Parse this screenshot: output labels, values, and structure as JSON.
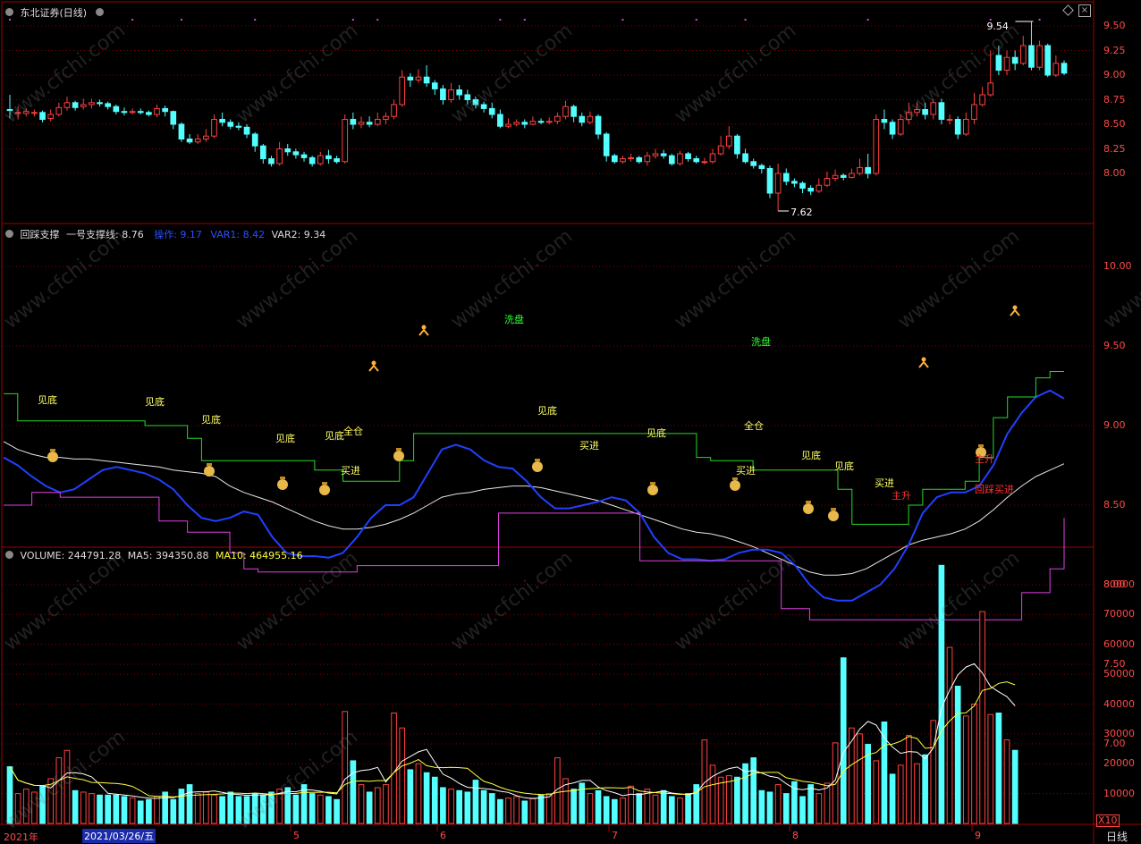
{
  "panes": {
    "price": {
      "title": "东北证券",
      "period": "(日线)",
      "high_marker": "9.54",
      "low_marker": "7.62",
      "yticks": [
        "9.50",
        "9.25",
        "9.00",
        "8.75",
        "8.50",
        "8.25",
        "8.00"
      ]
    },
    "indicator": {
      "name": "回踩支撑",
      "line1": "一号支撑线: 8.76",
      "line2": "操作: 9.17",
      "line3": "VAR1: 8.42",
      "line4": "VAR2: 9.34",
      "yticks": [
        "10.00",
        "9.50",
        "9.00",
        "8.50",
        "8.00",
        "7.50",
        "7.00"
      ]
    },
    "volume": {
      "name": "VOLUME: 244791.28",
      "ma5": "MA5: 394350.88",
      "ma10": "MA10: 464955.16",
      "yticks": [
        "80000",
        "70000",
        "60000",
        "50000",
        "40000",
        "30000",
        "20000",
        "10000"
      ],
      "unit": "X10"
    }
  },
  "xaxis": {
    "year": "2021年",
    "cursor_date": "2021/03/26/五",
    "months": [
      "5",
      "6",
      "7",
      "8",
      "9"
    ],
    "period_label": "日线"
  },
  "annotations": [
    {
      "text": "见底",
      "color": "#ffff66"
    },
    {
      "text": "见底",
      "color": "#ffff66"
    },
    {
      "text": "见底",
      "color": "#ffff66"
    },
    {
      "text": "见底",
      "color": "#ffff66"
    },
    {
      "text": "见底",
      "color": "#ffff66"
    },
    {
      "text": "全仓",
      "color": "#ffff66"
    },
    {
      "text": "买进",
      "color": "#ffff66"
    },
    {
      "text": "洗盘",
      "color": "#33ff33"
    },
    {
      "text": "见底",
      "color": "#ffff66"
    },
    {
      "text": "买进",
      "color": "#ffff66"
    },
    {
      "text": "见底",
      "color": "#ffff66"
    },
    {
      "text": "洗盘",
      "color": "#33ff33"
    },
    {
      "text": "买进",
      "color": "#ffff66"
    },
    {
      "text": "全仓",
      "color": "#ffff66"
    },
    {
      "text": "见底",
      "color": "#ffff66"
    },
    {
      "text": "见底",
      "color": "#ffff66"
    },
    {
      "text": "买进",
      "color": "#ffff66"
    },
    {
      "text": "主升",
      "color": "#ff3030"
    },
    {
      "text": "主升",
      "color": "#ff3030"
    },
    {
      "text": "回踩买进",
      "color": "#ff3030"
    }
  ],
  "watermark": "www.cfchi.com",
  "colors": {
    "up": "#ff4040",
    "down": "#54ffff",
    "grid": "#8a0000",
    "ind_blue": "#2040ff",
    "ind_white": "#e8e8e8",
    "ind_green": "#2ad82a",
    "ind_magenta": "#e040e0",
    "ma5": "#ffffff",
    "ma10": "#ffff40"
  },
  "chart_data": {
    "type": "candlestick",
    "title": "东北证券 (日线)",
    "price_range": [
      7.55,
      9.7
    ],
    "candles": [
      [
        8.65,
        8.64,
        8.8,
        8.56
      ],
      [
        8.62,
        8.62,
        8.68,
        8.55
      ],
      [
        8.61,
        8.63,
        8.66,
        8.58
      ],
      [
        8.62,
        8.62,
        8.65,
        8.58
      ],
      [
        8.62,
        8.55,
        8.64,
        8.52
      ],
      [
        8.56,
        8.6,
        8.65,
        8.53
      ],
      [
        8.6,
        8.67,
        8.72,
        8.58
      ],
      [
        8.67,
        8.72,
        8.78,
        8.64
      ],
      [
        8.72,
        8.67,
        8.74,
        8.64
      ],
      [
        8.68,
        8.7,
        8.76,
        8.65
      ],
      [
        8.7,
        8.72,
        8.76,
        8.66
      ],
      [
        8.72,
        8.71,
        8.75,
        8.68
      ],
      [
        8.71,
        8.68,
        8.73,
        8.65
      ],
      [
        8.68,
        8.63,
        8.7,
        8.6
      ],
      [
        8.63,
        8.62,
        8.67,
        8.59
      ],
      [
        8.62,
        8.63,
        8.66,
        8.6
      ],
      [
        8.63,
        8.62,
        8.66,
        8.6
      ],
      [
        8.62,
        8.6,
        8.64,
        8.58
      ],
      [
        8.6,
        8.66,
        8.7,
        8.57
      ],
      [
        8.66,
        8.63,
        8.69,
        8.58
      ],
      [
        8.63,
        8.5,
        8.64,
        8.45
      ],
      [
        8.5,
        8.35,
        8.52,
        8.32
      ],
      [
        8.35,
        8.32,
        8.4,
        8.3
      ],
      [
        8.32,
        8.35,
        8.4,
        8.3
      ],
      [
        8.35,
        8.38,
        8.45,
        8.32
      ],
      [
        8.38,
        8.55,
        8.6,
        8.36
      ],
      [
        8.55,
        8.52,
        8.62,
        8.48
      ],
      [
        8.52,
        8.48,
        8.55,
        8.45
      ],
      [
        8.48,
        8.47,
        8.52,
        8.44
      ],
      [
        8.47,
        8.4,
        8.5,
        8.36
      ],
      [
        8.4,
        8.28,
        8.42,
        8.22
      ],
      [
        8.28,
        8.15,
        8.3,
        8.1
      ],
      [
        8.15,
        8.1,
        8.18,
        8.07
      ],
      [
        8.1,
        8.25,
        8.32,
        8.08
      ],
      [
        8.25,
        8.22,
        8.3,
        8.18
      ],
      [
        8.22,
        8.19,
        8.25,
        8.15
      ],
      [
        8.19,
        8.16,
        8.22,
        8.12
      ],
      [
        8.16,
        8.1,
        8.18,
        8.07
      ],
      [
        8.1,
        8.18,
        8.22,
        8.08
      ],
      [
        8.18,
        8.15,
        8.24,
        8.1
      ],
      [
        8.15,
        8.12,
        8.18,
        8.1
      ],
      [
        8.12,
        8.55,
        8.6,
        8.1
      ],
      [
        8.55,
        8.5,
        8.62,
        8.45
      ],
      [
        8.5,
        8.52,
        8.58,
        8.46
      ],
      [
        8.52,
        8.5,
        8.58,
        8.47
      ],
      [
        8.5,
        8.55,
        8.62,
        8.48
      ],
      [
        8.55,
        8.58,
        8.62,
        8.5
      ],
      [
        8.58,
        8.7,
        8.75,
        8.55
      ],
      [
        8.7,
        8.98,
        9.05,
        8.68
      ],
      [
        8.98,
        8.95,
        9.02,
        8.88
      ],
      [
        8.95,
        8.98,
        9.06,
        8.92
      ],
      [
        8.98,
        8.92,
        9.1,
        8.88
      ],
      [
        8.92,
        8.86,
        8.95,
        8.8
      ],
      [
        8.86,
        8.75,
        8.9,
        8.7
      ],
      [
        8.75,
        8.85,
        8.92,
        8.72
      ],
      [
        8.85,
        8.8,
        8.9,
        8.75
      ],
      [
        8.8,
        8.75,
        8.85,
        8.7
      ],
      [
        8.75,
        8.7,
        8.78,
        8.66
      ],
      [
        8.7,
        8.66,
        8.73,
        8.62
      ],
      [
        8.66,
        8.6,
        8.72,
        8.56
      ],
      [
        8.6,
        8.48,
        8.65,
        8.46
      ],
      [
        8.48,
        8.5,
        8.56,
        8.46
      ],
      [
        8.5,
        8.52,
        8.55,
        8.48
      ],
      [
        8.52,
        8.5,
        8.55,
        8.46
      ],
      [
        8.5,
        8.53,
        8.58,
        8.49
      ],
      [
        8.53,
        8.52,
        8.56,
        8.5
      ],
      [
        8.52,
        8.53,
        8.57,
        8.5
      ],
      [
        8.53,
        8.58,
        8.62,
        8.5
      ],
      [
        8.58,
        8.68,
        8.74,
        8.55
      ],
      [
        8.68,
        8.58,
        8.7,
        8.52
      ],
      [
        8.58,
        8.52,
        8.62,
        8.48
      ],
      [
        8.52,
        8.58,
        8.63,
        8.5
      ],
      [
        8.58,
        8.4,
        8.6,
        8.35
      ],
      [
        8.4,
        8.18,
        8.42,
        8.12
      ],
      [
        8.18,
        8.12,
        8.2,
        8.1
      ],
      [
        8.12,
        8.15,
        8.18,
        8.1
      ],
      [
        8.15,
        8.16,
        8.2,
        8.12
      ],
      [
        8.16,
        8.12,
        8.18,
        8.1
      ],
      [
        8.12,
        8.18,
        8.22,
        8.08
      ],
      [
        8.18,
        8.2,
        8.25,
        8.15
      ],
      [
        8.2,
        8.18,
        8.24,
        8.15
      ],
      [
        8.18,
        8.1,
        8.2,
        8.08
      ],
      [
        8.1,
        8.2,
        8.23,
        8.08
      ],
      [
        8.2,
        8.15,
        8.22,
        8.12
      ],
      [
        8.15,
        8.12,
        8.18,
        8.1
      ],
      [
        8.12,
        8.12,
        8.16,
        8.09
      ],
      [
        8.12,
        8.2,
        8.25,
        8.1
      ],
      [
        8.2,
        8.28,
        8.38,
        8.18
      ],
      [
        8.28,
        8.38,
        8.48,
        8.25
      ],
      [
        8.38,
        8.2,
        8.4,
        8.15
      ],
      [
        8.2,
        8.12,
        8.25,
        8.1
      ],
      [
        8.12,
        8.08,
        8.15,
        8.05
      ],
      [
        8.08,
        8.05,
        8.1,
        8.0
      ],
      [
        8.05,
        7.8,
        8.08,
        7.75
      ],
      [
        7.8,
        8.0,
        8.1,
        7.62
      ],
      [
        8.0,
        7.92,
        8.05,
        7.88
      ],
      [
        7.92,
        7.9,
        7.95,
        7.86
      ],
      [
        7.9,
        7.85,
        7.92,
        7.8
      ],
      [
        7.85,
        7.82,
        7.88,
        7.78
      ],
      [
        7.82,
        7.88,
        7.95,
        7.8
      ],
      [
        7.88,
        7.95,
        8.02,
        7.86
      ],
      [
        7.95,
        7.98,
        8.04,
        7.92
      ],
      [
        7.98,
        7.96,
        8.0,
        7.93
      ],
      [
        7.96,
        8.0,
        8.05,
        7.95
      ],
      [
        8.0,
        8.06,
        8.15,
        7.98
      ],
      [
        8.06,
        8.0,
        8.2,
        7.95
      ],
      [
        8.0,
        8.55,
        8.6,
        7.98
      ],
      [
        8.55,
        8.52,
        8.65,
        8.45
      ],
      [
        8.52,
        8.4,
        8.55,
        8.35
      ],
      [
        8.4,
        8.55,
        8.6,
        8.38
      ],
      [
        8.55,
        8.62,
        8.72,
        8.5
      ],
      [
        8.62,
        8.65,
        8.72,
        8.58
      ],
      [
        8.65,
        8.6,
        8.72,
        8.55
      ],
      [
        8.6,
        8.72,
        8.75,
        8.55
      ],
      [
        8.72,
        8.55,
        8.76,
        8.5
      ],
      [
        8.55,
        8.55,
        8.6,
        8.5
      ],
      [
        8.55,
        8.4,
        8.58,
        8.35
      ],
      [
        8.4,
        8.55,
        8.62,
        8.38
      ],
      [
        8.55,
        8.7,
        8.82,
        8.5
      ],
      [
        8.7,
        8.8,
        8.88,
        8.68
      ],
      [
        8.8,
        8.92,
        9.25,
        8.78
      ],
      [
        9.2,
        9.05,
        9.3,
        9.0
      ],
      [
        9.05,
        9.18,
        9.25,
        9.0
      ],
      [
        9.18,
        9.12,
        9.25,
        9.05
      ],
      [
        9.12,
        9.3,
        9.4,
        9.1
      ],
      [
        9.3,
        9.08,
        9.54,
        9.05
      ],
      [
        9.08,
        9.3,
        9.35,
        9.05
      ],
      [
        9.3,
        9.0,
        9.32,
        8.98
      ],
      [
        9.0,
        9.12,
        9.2,
        8.98
      ],
      [
        9.12,
        9.02,
        9.15,
        9.0
      ]
    ],
    "volume_range": [
      0,
      90000
    ],
    "volume": [
      19000,
      10000,
      11500,
      10500,
      12500,
      15000,
      22000,
      24500,
      11000,
      10500,
      10000,
      9500,
      9500,
      9500,
      9000,
      8500,
      7500,
      8000,
      9000,
      10500,
      8000,
      11500,
      13000,
      10000,
      10500,
      9500,
      9000,
      10500,
      9000,
      9000,
      10000,
      9500,
      10500,
      11500,
      12000,
      9500,
      13000,
      10000,
      9500,
      9000,
      8000,
      37500,
      21000,
      13000,
      10500,
      12000,
      13000,
      37000,
      32000,
      18000,
      20000,
      17000,
      15500,
      12000,
      11500,
      11000,
      10500,
      14500,
      11000,
      10000,
      8000,
      8500,
      9000,
      7500,
      8500,
      9500,
      10000,
      22000,
      15000,
      11500,
      13500,
      10000,
      11000,
      9000,
      8000,
      8500,
      12500,
      10000,
      11500,
      9500,
      11000,
      9000,
      8500,
      10000,
      13000,
      28000,
      19500,
      15500,
      16000,
      15500,
      20000,
      22000,
      11000,
      10500,
      13000,
      10000,
      14000,
      9000,
      13000,
      10000,
      13500,
      27000,
      55500,
      32000,
      30000,
      26500,
      21000,
      34000,
      16500,
      19500,
      29500,
      20000,
      23000,
      34500,
      86500,
      59000,
      46000,
      36000,
      40000,
      71000,
      36500,
      37000,
      28000,
      24500
    ],
    "indicator_range": [
      6.55,
      10.45
    ],
    "indicator_series": [
      {
        "name": "一号支撑线",
        "values": [
          8.9,
          8.85,
          8.82,
          8.8,
          8.8,
          8.79,
          8.79,
          8.78,
          8.77,
          8.76,
          8.75,
          8.74,
          8.72,
          8.71,
          8.7,
          8.68,
          8.62,
          8.58,
          8.55,
          8.52,
          8.48,
          8.44,
          8.4,
          8.37,
          8.35,
          8.35,
          8.36,
          8.38,
          8.41,
          8.45,
          8.5,
          8.55,
          8.57,
          8.58,
          8.6,
          8.61,
          8.62,
          8.62,
          8.61,
          8.59,
          8.57,
          8.55,
          8.53,
          8.5,
          8.47,
          8.44,
          8.41,
          8.38,
          8.35,
          8.33,
          8.32,
          8.3,
          8.27,
          8.24,
          8.2,
          8.16,
          8.12,
          8.08,
          8.06,
          8.06,
          8.07,
          8.1,
          8.15,
          8.2,
          8.25,
          8.28,
          8.3,
          8.32,
          8.35,
          8.4,
          8.47,
          8.55,
          8.62,
          8.68,
          8.72,
          8.76
        ]
      },
      {
        "name": "操作",
        "values": [
          8.8,
          8.75,
          8.68,
          8.62,
          8.58,
          8.6,
          8.66,
          8.72,
          8.74,
          8.72,
          8.7,
          8.66,
          8.6,
          8.5,
          8.42,
          8.4,
          8.42,
          8.46,
          8.44,
          8.3,
          8.2,
          8.18,
          8.18,
          8.17,
          8.2,
          8.3,
          8.42,
          8.5,
          8.5,
          8.55,
          8.7,
          8.85,
          8.88,
          8.85,
          8.78,
          8.74,
          8.73,
          8.65,
          8.55,
          8.48,
          8.48,
          8.5,
          8.52,
          8.55,
          8.53,
          8.45,
          8.3,
          8.2,
          8.16,
          8.16,
          8.15,
          8.16,
          8.2,
          8.22,
          8.22,
          8.2,
          8.12,
          8.0,
          7.92,
          7.9,
          7.9,
          7.95,
          8.0,
          8.1,
          8.25,
          8.45,
          8.55,
          8.58,
          8.58,
          8.62,
          8.75,
          8.95,
          9.08,
          9.18,
          9.22,
          9.17
        ]
      },
      {
        "name": "VAR1",
        "values": [
          8.5,
          8.5,
          8.58,
          8.58,
          8.55,
          8.55,
          8.55,
          8.55,
          8.55,
          8.55,
          8.55,
          8.4,
          8.4,
          8.33,
          8.33,
          8.33,
          8.2,
          8.1,
          8.08,
          8.08,
          8.08,
          8.08,
          8.08,
          8.08,
          8.08,
          8.12,
          8.12,
          8.12,
          8.12,
          8.12,
          8.12,
          8.12,
          8.12,
          8.12,
          8.12,
          8.45,
          8.45,
          8.45,
          8.45,
          8.45,
          8.45,
          8.45,
          8.45,
          8.45,
          8.45,
          8.15,
          8.15,
          8.15,
          8.15,
          8.15,
          8.15,
          8.15,
          8.15,
          8.15,
          8.15,
          7.85,
          7.85,
          7.78,
          7.78,
          7.78,
          7.78,
          7.78,
          7.78,
          7.78,
          7.78,
          7.78,
          7.78,
          7.78,
          7.78,
          7.78,
          7.78,
          7.78,
          7.95,
          7.95,
          8.1,
          8.42
        ]
      },
      {
        "name": "VAR2",
        "values": [
          9.2,
          9.03,
          9.03,
          9.03,
          9.03,
          9.03,
          9.03,
          9.03,
          9.03,
          9.03,
          9.0,
          9.0,
          9.0,
          8.92,
          8.78,
          8.78,
          8.78,
          8.78,
          8.78,
          8.78,
          8.78,
          8.78,
          8.72,
          8.72,
          8.65,
          8.65,
          8.65,
          8.65,
          8.78,
          8.95,
          8.95,
          8.95,
          8.95,
          8.95,
          8.95,
          8.95,
          8.95,
          8.95,
          8.95,
          8.95,
          8.95,
          8.95,
          8.95,
          8.95,
          8.95,
          8.95,
          8.95,
          8.95,
          8.95,
          8.8,
          8.78,
          8.78,
          8.78,
          8.72,
          8.72,
          8.72,
          8.72,
          8.72,
          8.72,
          8.6,
          8.38,
          8.38,
          8.38,
          8.38,
          8.5,
          8.6,
          8.6,
          8.6,
          8.65,
          8.8,
          9.05,
          9.18,
          9.18,
          9.3,
          9.34,
          9.34
        ]
      }
    ]
  }
}
